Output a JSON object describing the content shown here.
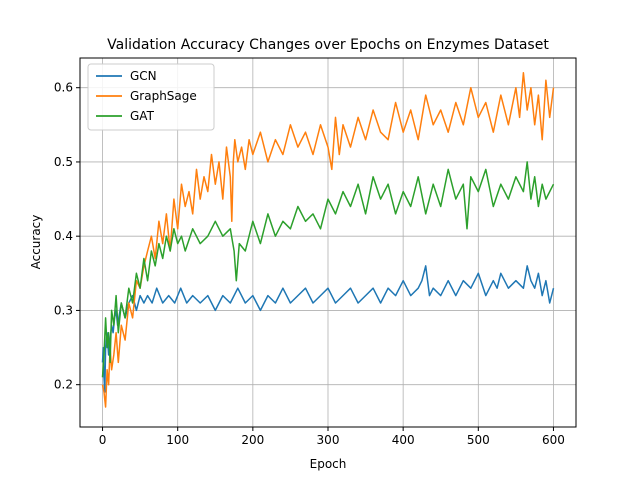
{
  "chart_data": {
    "type": "line",
    "title": "Validation Accuracy Changes over Epochs on Enzymes Dataset",
    "xlabel": "Epoch",
    "ylabel": "Accuracy",
    "xlim": [
      -30,
      630
    ],
    "ylim": [
      0.143,
      0.64
    ],
    "xticks": [
      0,
      100,
      200,
      300,
      400,
      500,
      600
    ],
    "yticks": [
      0.2,
      0.3,
      0.4,
      0.5,
      0.6
    ],
    "x_tick_labels": [
      "0",
      "100",
      "200",
      "300",
      "400",
      "500",
      "600"
    ],
    "y_tick_labels": [
      "0.2",
      "0.3",
      "0.4",
      "0.5",
      "0.6"
    ],
    "grid": true,
    "legend_position": "top-left",
    "series": [
      {
        "name": "GCN",
        "color": "#1f77b4",
        "x": [
          0,
          1,
          2,
          3,
          4,
          6,
          8,
          10,
          12,
          14,
          16,
          18,
          20,
          25,
          30,
          35,
          40,
          45,
          50,
          55,
          60,
          66,
          72,
          80,
          88,
          96,
          104,
          112,
          120,
          130,
          140,
          150,
          160,
          170,
          180,
          190,
          200,
          210,
          220,
          230,
          240,
          250,
          260,
          270,
          280,
          290,
          300,
          310,
          320,
          330,
          340,
          350,
          360,
          370,
          380,
          390,
          400,
          410,
          420,
          425,
          430,
          435,
          440,
          450,
          460,
          470,
          480,
          490,
          500,
          510,
          520,
          525,
          530,
          540,
          550,
          560,
          565,
          570,
          575,
          580,
          585,
          590,
          595,
          600
        ],
        "y": [
          0.23,
          0.25,
          0.21,
          0.19,
          0.25,
          0.27,
          0.24,
          0.26,
          0.28,
          0.27,
          0.29,
          0.3,
          0.28,
          0.31,
          0.29,
          0.31,
          0.32,
          0.3,
          0.32,
          0.31,
          0.32,
          0.31,
          0.33,
          0.31,
          0.32,
          0.31,
          0.33,
          0.31,
          0.32,
          0.31,
          0.32,
          0.3,
          0.32,
          0.31,
          0.33,
          0.31,
          0.32,
          0.3,
          0.32,
          0.31,
          0.33,
          0.31,
          0.32,
          0.33,
          0.31,
          0.32,
          0.33,
          0.31,
          0.32,
          0.33,
          0.31,
          0.32,
          0.33,
          0.31,
          0.33,
          0.32,
          0.34,
          0.32,
          0.33,
          0.34,
          0.36,
          0.32,
          0.33,
          0.32,
          0.34,
          0.32,
          0.34,
          0.33,
          0.35,
          0.32,
          0.34,
          0.33,
          0.35,
          0.33,
          0.34,
          0.33,
          0.36,
          0.34,
          0.33,
          0.35,
          0.32,
          0.34,
          0.31,
          0.33
        ]
      },
      {
        "name": "GraphSage",
        "color": "#ff7f0e",
        "x": [
          0,
          2,
          4,
          6,
          8,
          10,
          12,
          15,
          18,
          21,
          25,
          30,
          35,
          40,
          45,
          50,
          55,
          60,
          65,
          70,
          75,
          80,
          85,
          90,
          95,
          100,
          105,
          110,
          115,
          120,
          125,
          130,
          135,
          140,
          145,
          150,
          155,
          160,
          165,
          170,
          172,
          174,
          176,
          180,
          185,
          190,
          195,
          200,
          210,
          220,
          230,
          240,
          250,
          260,
          270,
          280,
          290,
          300,
          305,
          310,
          315,
          320,
          330,
          340,
          350,
          360,
          370,
          380,
          390,
          400,
          410,
          420,
          430,
          440,
          450,
          460,
          470,
          480,
          490,
          500,
          510,
          520,
          530,
          540,
          550,
          555,
          560,
          565,
          570,
          575,
          580,
          585,
          590,
          595,
          600
        ],
        "y": [
          0.2,
          0.19,
          0.17,
          0.22,
          0.2,
          0.25,
          0.22,
          0.24,
          0.27,
          0.23,
          0.28,
          0.26,
          0.31,
          0.29,
          0.34,
          0.33,
          0.36,
          0.38,
          0.4,
          0.37,
          0.42,
          0.39,
          0.43,
          0.38,
          0.45,
          0.41,
          0.47,
          0.44,
          0.46,
          0.43,
          0.49,
          0.45,
          0.48,
          0.46,
          0.51,
          0.47,
          0.5,
          0.45,
          0.52,
          0.48,
          0.42,
          0.5,
          0.53,
          0.5,
          0.52,
          0.49,
          0.53,
          0.51,
          0.54,
          0.5,
          0.53,
          0.51,
          0.55,
          0.52,
          0.54,
          0.51,
          0.55,
          0.52,
          0.49,
          0.56,
          0.51,
          0.55,
          0.52,
          0.56,
          0.53,
          0.57,
          0.54,
          0.53,
          0.58,
          0.54,
          0.57,
          0.53,
          0.59,
          0.55,
          0.57,
          0.54,
          0.58,
          0.55,
          0.6,
          0.56,
          0.58,
          0.54,
          0.59,
          0.55,
          0.6,
          0.56,
          0.62,
          0.57,
          0.6,
          0.55,
          0.59,
          0.53,
          0.61,
          0.56,
          0.6
        ]
      },
      {
        "name": "GAT",
        "color": "#2ca02c",
        "x": [
          0,
          2,
          4,
          6,
          8,
          10,
          12,
          15,
          18,
          21,
          25,
          30,
          35,
          40,
          45,
          50,
          55,
          60,
          65,
          70,
          75,
          80,
          85,
          90,
          95,
          100,
          105,
          110,
          120,
          130,
          140,
          150,
          160,
          170,
          175,
          178,
          182,
          190,
          200,
          210,
          220,
          230,
          240,
          250,
          260,
          270,
          280,
          290,
          300,
          310,
          320,
          330,
          340,
          350,
          360,
          370,
          380,
          390,
          400,
          410,
          420,
          430,
          440,
          450,
          460,
          470,
          480,
          485,
          490,
          500,
          510,
          520,
          530,
          540,
          550,
          560,
          565,
          570,
          575,
          580,
          585,
          590,
          595,
          600
        ],
        "y": [
          0.21,
          0.24,
          0.29,
          0.25,
          0.27,
          0.23,
          0.3,
          0.28,
          0.32,
          0.27,
          0.31,
          0.29,
          0.33,
          0.31,
          0.35,
          0.33,
          0.37,
          0.34,
          0.38,
          0.36,
          0.39,
          0.37,
          0.4,
          0.38,
          0.41,
          0.39,
          0.4,
          0.38,
          0.41,
          0.39,
          0.4,
          0.42,
          0.4,
          0.41,
          0.38,
          0.34,
          0.39,
          0.38,
          0.42,
          0.39,
          0.43,
          0.4,
          0.42,
          0.41,
          0.44,
          0.42,
          0.43,
          0.41,
          0.45,
          0.43,
          0.46,
          0.44,
          0.47,
          0.43,
          0.48,
          0.45,
          0.47,
          0.43,
          0.46,
          0.44,
          0.48,
          0.43,
          0.47,
          0.44,
          0.49,
          0.45,
          0.47,
          0.41,
          0.48,
          0.46,
          0.49,
          0.44,
          0.47,
          0.45,
          0.48,
          0.46,
          0.5,
          0.45,
          0.48,
          0.44,
          0.47,
          0.45,
          0.46,
          0.47
        ]
      }
    ]
  }
}
